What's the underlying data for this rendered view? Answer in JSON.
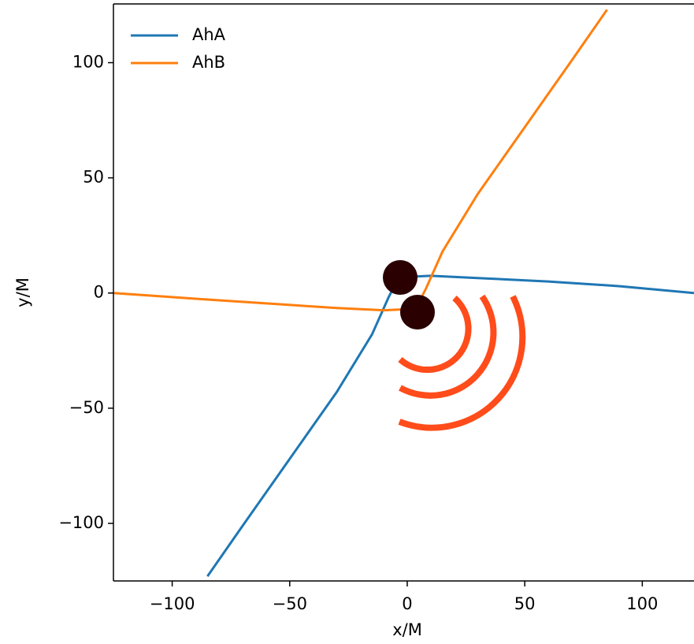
{
  "chart_data": {
    "type": "line",
    "xlabel": "x/M",
    "ylabel": "y/M",
    "xlim": [
      -125,
      122
    ],
    "ylim": [
      -125,
      125.5
    ],
    "xticks": [
      {
        "value": -100,
        "label": "−100"
      },
      {
        "value": -50,
        "label": "−50"
      },
      0,
      50,
      100
    ],
    "yticks": [
      {
        "value": -100,
        "label": "−100"
      },
      {
        "value": -50,
        "label": "−50"
      },
      0,
      50,
      100
    ],
    "grid": false,
    "legend": "upper left",
    "series": [
      {
        "name": "AhA",
        "color": "#1f77b4",
        "x": [
          -85,
          -70,
          -50,
          -30,
          -15,
          -8,
          -5,
          0,
          10,
          30,
          60,
          90,
          122
        ],
        "values": [
          -123,
          -101,
          -72,
          -43,
          -18,
          -2,
          4,
          7,
          7.5,
          6.5,
          5,
          3,
          0
        ]
      },
      {
        "name": "AhB",
        "color": "#ff7f0e",
        "x": [
          -125,
          -90,
          -60,
          -30,
          -10,
          0,
          5,
          8,
          15,
          30,
          50,
          70,
          85
        ],
        "values": [
          0,
          -2.5,
          -4.5,
          -6.5,
          -7.5,
          -7,
          -4,
          2,
          18,
          43,
          72,
          101,
          123
        ]
      }
    ]
  }
}
